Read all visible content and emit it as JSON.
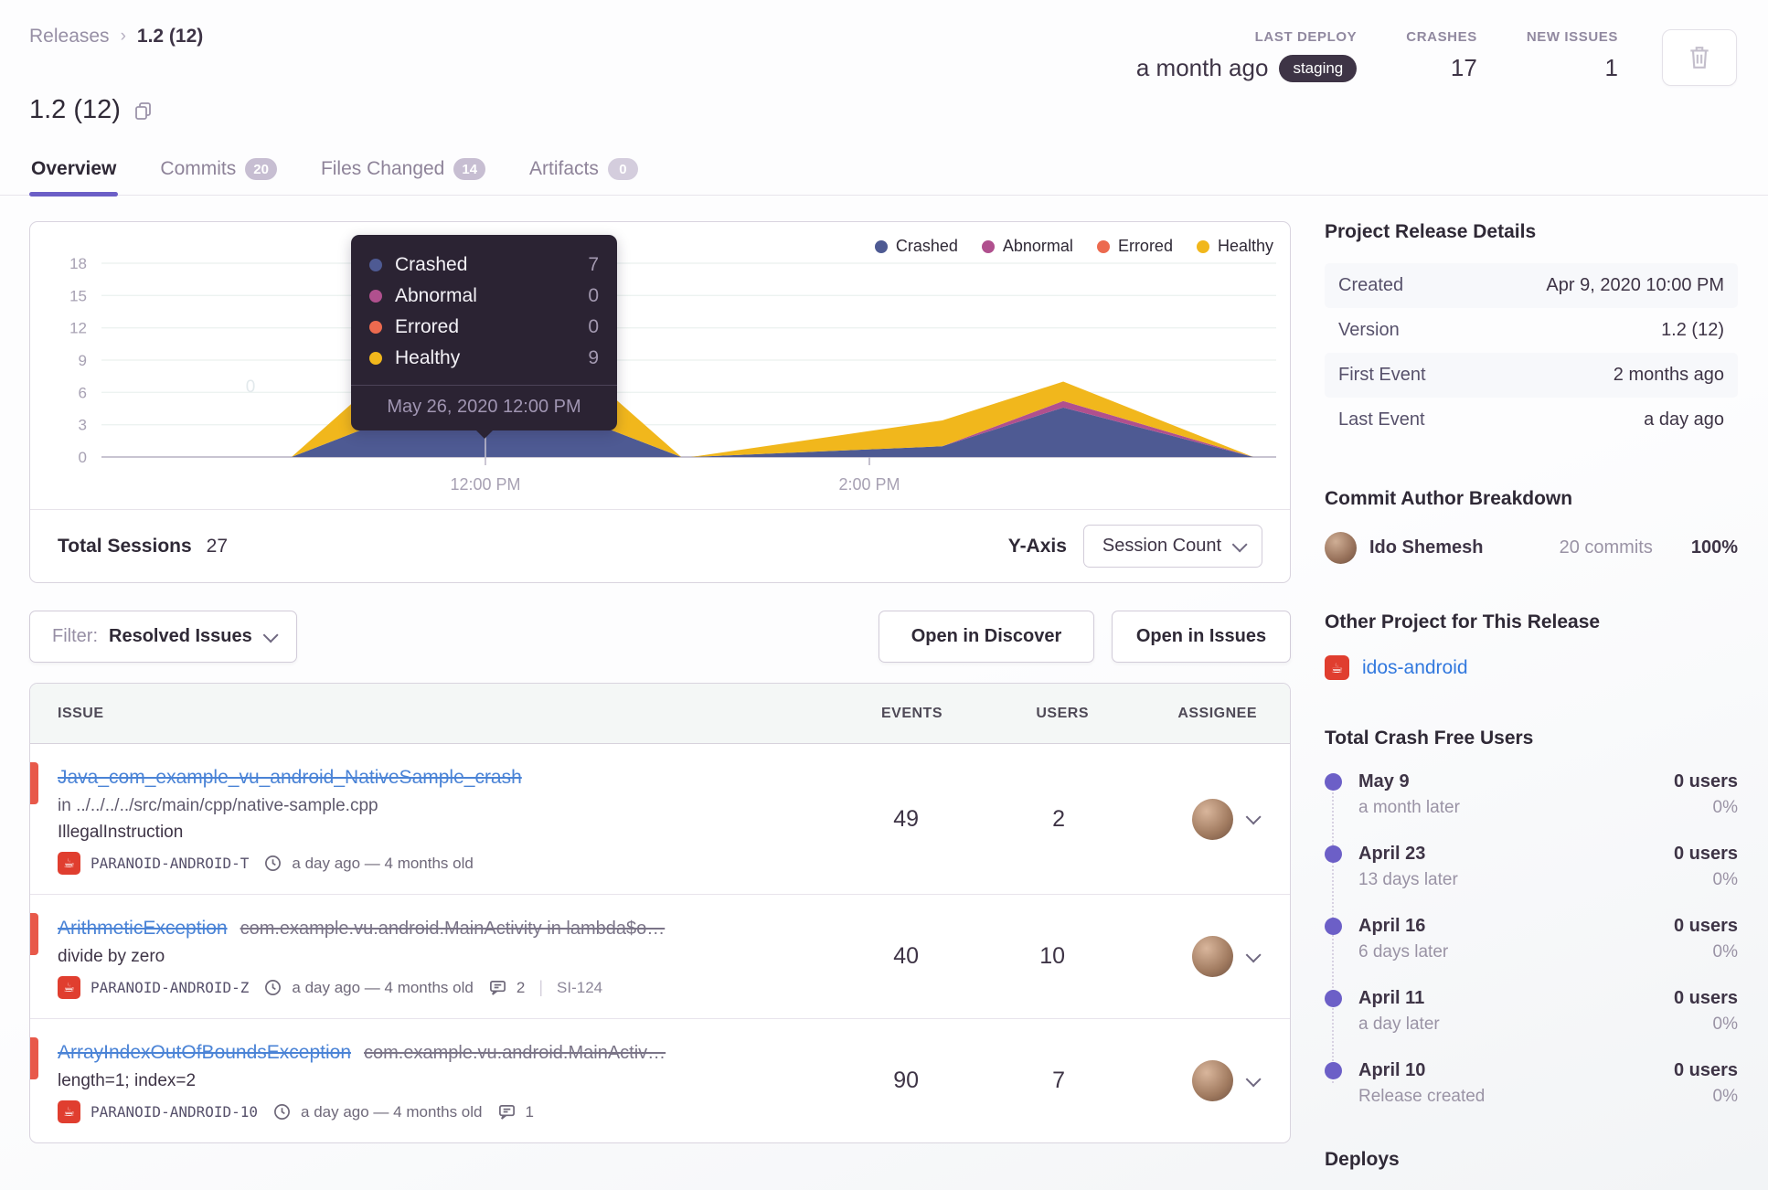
{
  "breadcrumb": {
    "parent": "Releases",
    "separator": "›",
    "current": "1.2 (12)"
  },
  "header": {
    "title": "1.2 (12)",
    "stats": [
      {
        "label": "LAST DEPLOY",
        "value": "a month ago",
        "badge": "staging"
      },
      {
        "label": "CRASHES",
        "value": "17"
      },
      {
        "label": "NEW ISSUES",
        "value": "1"
      }
    ]
  },
  "tabs": [
    {
      "label": "Overview"
    },
    {
      "label": "Commits",
      "count": "20"
    },
    {
      "label": "Files Changed",
      "count": "14"
    },
    {
      "label": "Artifacts",
      "count": "0"
    }
  ],
  "chart": {
    "legend": [
      "Crashed",
      "Abnormal",
      "Errored",
      "Healthy"
    ],
    "tooltip": {
      "rows": [
        {
          "label": "Crashed",
          "value": "7"
        },
        {
          "label": "Abnormal",
          "value": "0"
        },
        {
          "label": "Errored",
          "value": "0"
        },
        {
          "label": "Healthy",
          "value": "9"
        }
      ],
      "date": "May 26, 2020 12:00 PM"
    },
    "watermark": "0",
    "footer": {
      "total_label": "Total Sessions",
      "total_value": "27",
      "yaxis_label": "Y-Axis",
      "yaxis_value": "Session Count"
    },
    "chart_data": {
      "type": "area",
      "stacked": true,
      "title": "Sessions by status over time",
      "x_unit": "hour_of_day",
      "x": [
        10.99,
        12.0,
        13.02,
        13.07,
        14.38,
        15.01,
        16.0
      ],
      "series": [
        {
          "name": "Crashed",
          "color": "#4e5a93",
          "values": [
            0,
            7,
            0,
            0,
            1.0,
            4.6,
            0
          ]
        },
        {
          "name": "Abnormal",
          "color": "#b0508e",
          "values": [
            0,
            0,
            0,
            0,
            0,
            0.6,
            0
          ]
        },
        {
          "name": "Errored",
          "color": "#ec6a4f",
          "values": [
            0,
            0,
            0,
            0,
            0,
            0,
            0
          ]
        },
        {
          "name": "Healthy",
          "color": "#f1b71c",
          "values": [
            0,
            9,
            0,
            0,
            2.4,
            1.8,
            0
          ]
        }
      ],
      "ylim": [
        0,
        18
      ],
      "yticks": [
        0,
        3,
        6,
        9,
        12,
        15,
        18
      ],
      "xticks": [
        {
          "hour": 12,
          "label": "12:00 PM"
        },
        {
          "hour": 14,
          "label": "2:00 PM"
        }
      ],
      "legend_position": "top-right",
      "grid": true,
      "hover_point": {
        "x_label": "May 26, 2020 12:00 PM",
        "crashed": 7,
        "abnormal": 0,
        "errored": 0,
        "healthy": 9
      },
      "total_sessions": 27
    }
  },
  "controls": {
    "filter_label": "Filter:",
    "filter_value": "Resolved Issues",
    "discover_button": "Open in Discover",
    "issues_button": "Open in Issues"
  },
  "issues": {
    "columns": {
      "issue": "ISSUE",
      "events": "EVENTS",
      "users": "USERS",
      "assignee": "ASSIGNEE"
    },
    "rows": [
      {
        "title": "Java_com_example_vu_android_NativeSample_crash",
        "subtitle": "in ../../../../src/main/cpp/native-sample.cpp",
        "detail": "IllegalInstruction",
        "project": "PARANOID-ANDROID-T",
        "age": "a day ago — 4 months old",
        "events": "49",
        "users": "2"
      },
      {
        "title": "ArithmeticException",
        "title_suffix": "com.example.vu.android.MainActivity in lambda$o…",
        "detail": "divide by zero",
        "project": "PARANOID-ANDROID-Z",
        "age": "a day ago — 4 months old",
        "comments": "2",
        "short_id": "SI-124",
        "events": "40",
        "users": "10"
      },
      {
        "title": "ArrayIndexOutOfBoundsException",
        "title_suffix": "com.example.vu.android.MainActiv…",
        "detail": "length=1; index=2",
        "project": "PARANOID-ANDROID-10",
        "age": "a day ago — 4 months old",
        "comments": "1",
        "events": "90",
        "users": "7"
      }
    ]
  },
  "sidebar": {
    "details": {
      "heading": "Project Release Details",
      "rows": [
        {
          "label": "Created",
          "value": "Apr 9, 2020 10:00 PM"
        },
        {
          "label": "Version",
          "value": "1.2 (12)"
        },
        {
          "label": "First Event",
          "value": "2 months ago"
        },
        {
          "label": "Last Event",
          "value": "a day ago"
        }
      ]
    },
    "authors": {
      "heading": "Commit Author Breakdown",
      "rows": [
        {
          "name": "Ido Shemesh",
          "commits": "20 commits",
          "percent": "100%"
        }
      ]
    },
    "other_project": {
      "heading": "Other Project for This Release",
      "link": "idos-android"
    },
    "crash_free": {
      "heading": "Total Crash Free Users",
      "items": [
        {
          "date": "May 9",
          "sub": "a month later",
          "users": "0 users",
          "percent": "0%"
        },
        {
          "date": "April 23",
          "sub": "13 days later",
          "users": "0 users",
          "percent": "0%"
        },
        {
          "date": "April 16",
          "sub": "6 days later",
          "users": "0 users",
          "percent": "0%"
        },
        {
          "date": "April 11",
          "sub": "a day later",
          "users": "0 users",
          "percent": "0%"
        },
        {
          "date": "April 10",
          "sub": "Release created",
          "users": "0 users",
          "percent": "0%"
        }
      ]
    },
    "deploys_heading": "Deploys"
  },
  "colors": {
    "accent_purple": "#6c5fc7",
    "link_blue": "#4a83d6",
    "crashed": "#4e5a93",
    "abnormal": "#b0508e",
    "errored": "#ec6a4f",
    "healthy": "#f1b71c",
    "error_level_red": "#e8594a",
    "env_badge_bg": "#3e3446"
  }
}
